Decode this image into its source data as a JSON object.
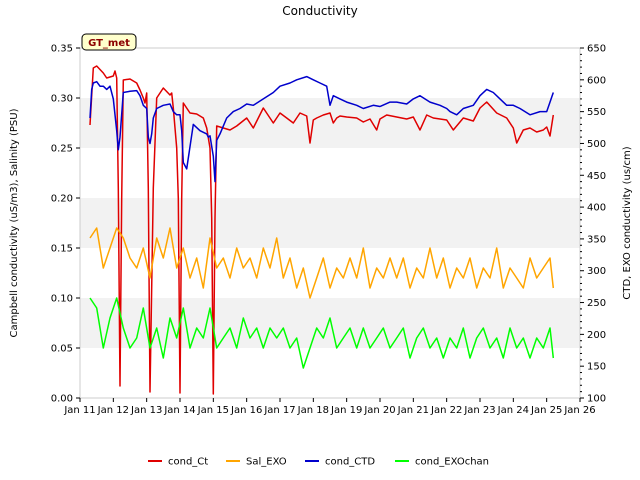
{
  "chart_data": {
    "type": "line",
    "title": "Conductivity",
    "badge": "GT_met",
    "ylabel_left": "Campbell conductivity (uS/m3), Salinity (PSU)",
    "ylabel_right": "CTD, EXO conductivity (us/cm)",
    "xlim": [
      11,
      26
    ],
    "x_ticks": [
      11,
      12,
      13,
      14,
      15,
      16,
      17,
      18,
      19,
      20,
      21,
      22,
      23,
      24,
      25,
      26
    ],
    "x_tick_labels": [
      "Jan 11",
      "Jan 12",
      "Jan 13",
      "Jan 14",
      "Jan 15",
      "Jan 16",
      "Jan 17",
      "Jan 18",
      "Jan 19",
      "Jan 20",
      "Jan 21",
      "Jan 22",
      "Jan 23",
      "Jan 24",
      "Jan 25",
      "Jan 26"
    ],
    "ylim_left": [
      0,
      0.35
    ],
    "y_ticks_left": [
      "0.00",
      "0.05",
      "0.10",
      "0.15",
      "0.20",
      "0.25",
      "0.30",
      "0.35"
    ],
    "ylim_right": [
      100,
      650
    ],
    "y_ticks_right": [
      "100",
      "150",
      "200",
      "250",
      "300",
      "350",
      "400",
      "450",
      "500",
      "550",
      "600",
      "650"
    ],
    "grid": "horizontal bands",
    "legend_position": "bottom",
    "series": [
      {
        "name": "cond_Ct",
        "axis": "left",
        "color": "#e00000",
        "x": [
          11.3,
          11.4,
          11.5,
          11.7,
          11.8,
          12.0,
          12.05,
          12.1,
          12.15,
          12.2,
          12.25,
          12.3,
          12.5,
          12.7,
          12.8,
          12.9,
          12.95,
          13.0,
          13.05,
          13.1,
          13.2,
          13.3,
          13.5,
          13.7,
          13.75,
          13.8,
          13.9,
          13.95,
          14.0,
          14.05,
          14.1,
          14.3,
          14.5,
          14.7,
          14.75,
          14.8,
          14.9,
          14.95,
          15.0,
          15.05,
          15.1,
          15.3,
          15.5,
          15.7,
          16.0,
          16.2,
          16.5,
          16.8,
          17.0,
          17.2,
          17.4,
          17.6,
          17.8,
          17.9,
          18.0,
          18.1,
          18.3,
          18.5,
          18.6,
          18.7,
          18.8,
          19.0,
          19.3,
          19.5,
          19.7,
          19.9,
          20.0,
          20.2,
          20.5,
          20.8,
          21.0,
          21.2,
          21.4,
          21.6,
          21.8,
          22.0,
          22.2,
          22.5,
          22.8,
          23.0,
          23.2,
          23.5,
          23.8,
          24.0,
          24.1,
          24.3,
          24.5,
          24.7,
          24.9,
          25.0,
          25.1,
          25.2
        ],
        "y": [
          0.273,
          0.33,
          0.332,
          0.325,
          0.32,
          0.322,
          0.327,
          0.32,
          0.21,
          0.012,
          0.2,
          0.318,
          0.319,
          0.315,
          0.308,
          0.3,
          0.295,
          0.305,
          0.21,
          0.006,
          0.21,
          0.3,
          0.31,
          0.303,
          0.305,
          0.29,
          0.25,
          0.2,
          0.005,
          0.2,
          0.295,
          0.285,
          0.284,
          0.28,
          0.275,
          0.27,
          0.25,
          0.18,
          0.004,
          0.18,
          0.272,
          0.27,
          0.268,
          0.272,
          0.28,
          0.27,
          0.29,
          0.275,
          0.285,
          0.28,
          0.275,
          0.285,
          0.282,
          0.255,
          0.278,
          0.28,
          0.283,
          0.285,
          0.275,
          0.28,
          0.282,
          0.281,
          0.28,
          0.276,
          0.279,
          0.268,
          0.279,
          0.283,
          0.281,
          0.279,
          0.281,
          0.268,
          0.283,
          0.28,
          0.279,
          0.278,
          0.268,
          0.28,
          0.277,
          0.29,
          0.296,
          0.285,
          0.28,
          0.27,
          0.255,
          0.268,
          0.27,
          0.266,
          0.268,
          0.271,
          0.262,
          0.283
        ]
      },
      {
        "name": "Sal_EXO",
        "axis": "left",
        "color": "#ffa500",
        "x": [
          11.3,
          11.5,
          11.7,
          11.9,
          12.1,
          12.3,
          12.5,
          12.7,
          12.9,
          13.1,
          13.3,
          13.5,
          13.7,
          13.9,
          14.1,
          14.3,
          14.5,
          14.7,
          14.9,
          15.1,
          15.3,
          15.5,
          15.7,
          15.9,
          16.1,
          16.3,
          16.5,
          16.7,
          16.9,
          17.1,
          17.3,
          17.5,
          17.7,
          17.9,
          18.1,
          18.3,
          18.5,
          18.7,
          18.9,
          19.1,
          19.3,
          19.5,
          19.7,
          19.9,
          20.1,
          20.3,
          20.5,
          20.7,
          20.9,
          21.1,
          21.3,
          21.5,
          21.7,
          21.9,
          22.1,
          22.3,
          22.5,
          22.7,
          22.9,
          23.1,
          23.3,
          23.5,
          23.7,
          23.9,
          24.1,
          24.3,
          24.5,
          24.7,
          24.9,
          25.1,
          25.2
        ],
        "y": [
          0.16,
          0.17,
          0.13,
          0.15,
          0.17,
          0.16,
          0.14,
          0.13,
          0.15,
          0.12,
          0.16,
          0.14,
          0.17,
          0.13,
          0.15,
          0.12,
          0.14,
          0.11,
          0.16,
          0.13,
          0.14,
          0.12,
          0.15,
          0.13,
          0.14,
          0.12,
          0.15,
          0.13,
          0.16,
          0.12,
          0.14,
          0.11,
          0.13,
          0.1,
          0.12,
          0.14,
          0.11,
          0.13,
          0.12,
          0.14,
          0.12,
          0.15,
          0.11,
          0.13,
          0.12,
          0.14,
          0.12,
          0.14,
          0.11,
          0.13,
          0.12,
          0.15,
          0.12,
          0.14,
          0.11,
          0.13,
          0.12,
          0.14,
          0.11,
          0.13,
          0.12,
          0.15,
          0.11,
          0.13,
          0.12,
          0.11,
          0.14,
          0.12,
          0.13,
          0.14,
          0.11
        ]
      },
      {
        "name": "cond_CTD",
        "axis": "right",
        "color": "#0000cc",
        "x": [
          11.3,
          11.35,
          11.4,
          11.5,
          11.6,
          11.7,
          11.8,
          11.9,
          12.0,
          12.1,
          12.15,
          12.2,
          12.3,
          12.5,
          12.7,
          12.8,
          12.9,
          13.0,
          13.05,
          13.1,
          13.15,
          13.2,
          13.3,
          13.5,
          13.7,
          13.8,
          13.9,
          14.0,
          14.05,
          14.1,
          14.2,
          14.4,
          14.6,
          14.8,
          14.85,
          14.9,
          15.0,
          15.05,
          15.1,
          15.2,
          15.4,
          15.6,
          15.8,
          16.0,
          16.2,
          16.5,
          16.8,
          17.0,
          17.3,
          17.5,
          17.8,
          18.0,
          18.2,
          18.4,
          18.5,
          18.6,
          18.8,
          19.0,
          19.3,
          19.5,
          19.8,
          20.0,
          20.3,
          20.5,
          20.8,
          21.0,
          21.2,
          21.5,
          21.8,
          22.0,
          22.1,
          22.3,
          22.5,
          22.8,
          23.0,
          23.2,
          23.4,
          23.6,
          23.8,
          24.0,
          24.2,
          24.5,
          24.8,
          25.0,
          25.1,
          25.2
        ],
        "y": [
          540,
          585,
          595,
          597,
          590,
          590,
          585,
          590,
          570,
          520,
          490,
          510,
          580,
          582,
          583,
          575,
          560,
          555,
          510,
          500,
          515,
          540,
          555,
          560,
          562,
          550,
          545,
          545,
          520,
          470,
          460,
          530,
          520,
          515,
          510,
          512,
          480,
          440,
          505,
          515,
          540,
          550,
          555,
          562,
          560,
          570,
          580,
          590,
          595,
          600,
          605,
          600,
          595,
          590,
          560,
          575,
          570,
          565,
          560,
          555,
          560,
          558,
          565,
          565,
          562,
          570,
          575,
          565,
          560,
          555,
          550,
          545,
          555,
          560,
          575,
          585,
          580,
          570,
          560,
          560,
          555,
          545,
          550,
          550,
          565,
          580
        ]
      },
      {
        "name": "cond_EXOchan",
        "axis": "left",
        "color": "#00ff00",
        "x": [
          11.3,
          11.5,
          11.7,
          11.9,
          12.1,
          12.3,
          12.5,
          12.7,
          12.9,
          13.1,
          13.3,
          13.5,
          13.7,
          13.9,
          14.1,
          14.3,
          14.5,
          14.7,
          14.9,
          15.1,
          15.3,
          15.5,
          15.7,
          15.9,
          16.1,
          16.3,
          16.5,
          16.7,
          16.9,
          17.1,
          17.3,
          17.5,
          17.7,
          17.9,
          18.1,
          18.3,
          18.5,
          18.7,
          18.9,
          19.1,
          19.3,
          19.5,
          19.7,
          19.9,
          20.1,
          20.3,
          20.5,
          20.7,
          20.9,
          21.1,
          21.3,
          21.5,
          21.7,
          21.9,
          22.1,
          22.3,
          22.5,
          22.7,
          22.9,
          23.1,
          23.3,
          23.5,
          23.7,
          23.9,
          24.1,
          24.3,
          24.5,
          24.7,
          24.9,
          25.1,
          25.2
        ],
        "y": [
          0.1,
          0.09,
          0.05,
          0.08,
          0.1,
          0.07,
          0.05,
          0.06,
          0.09,
          0.05,
          0.07,
          0.04,
          0.08,
          0.06,
          0.09,
          0.05,
          0.07,
          0.06,
          0.09,
          0.05,
          0.06,
          0.07,
          0.05,
          0.08,
          0.06,
          0.07,
          0.05,
          0.07,
          0.06,
          0.07,
          0.05,
          0.06,
          0.03,
          0.05,
          0.07,
          0.06,
          0.08,
          0.05,
          0.06,
          0.07,
          0.05,
          0.07,
          0.05,
          0.06,
          0.07,
          0.05,
          0.06,
          0.07,
          0.04,
          0.06,
          0.07,
          0.05,
          0.06,
          0.04,
          0.06,
          0.05,
          0.07,
          0.04,
          0.06,
          0.07,
          0.05,
          0.06,
          0.04,
          0.07,
          0.05,
          0.06,
          0.04,
          0.06,
          0.05,
          0.07,
          0.04
        ]
      }
    ]
  }
}
